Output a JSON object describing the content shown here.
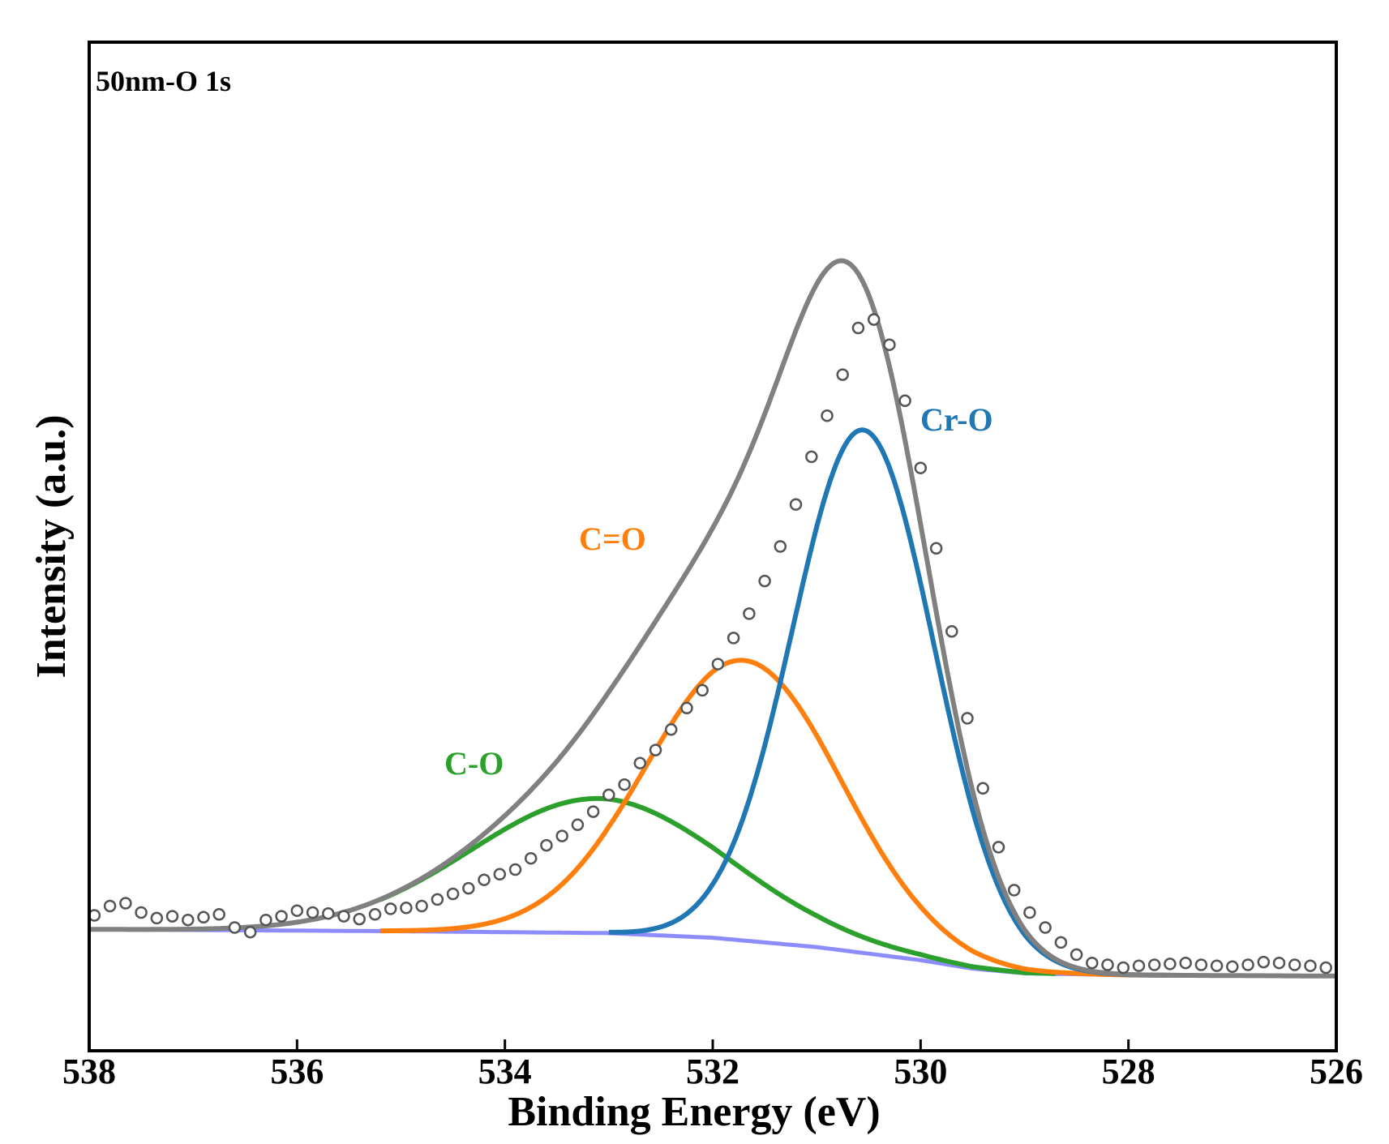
{
  "chart_data": {
    "type": "line",
    "title": "50nm-O 1s",
    "xlabel": "Binding Energy (eV)",
    "ylabel": "Intensity (a.u.)",
    "xlim": [
      538,
      526
    ],
    "x_reversed": true,
    "x_ticks": [
      538,
      536,
      534,
      532,
      530,
      528,
      526
    ],
    "x_tick_labels": [
      "538",
      "536",
      "534",
      "532",
      "530",
      "528",
      "526"
    ],
    "ylim": [
      -0.08,
      1.0
    ],
    "y_ticks_shown": false,
    "grid": false,
    "legend": "none",
    "colors": {
      "Cr-O": "#1f77b4",
      "C=O": "#ff7f0e",
      "C-O": "#2ca02c",
      "background": "#8c8cff",
      "envelope": "#808080",
      "raw": "#555555"
    },
    "background": {
      "x": [
        538,
        535,
        533,
        532,
        531,
        530,
        529.5,
        529,
        528,
        526
      ],
      "values": [
        0.05,
        0.048,
        0.046,
        0.041,
        0.031,
        0.017,
        0.008,
        0.003,
        0.001,
        0.0
      ]
    },
    "components": [
      {
        "name": "Cr-O",
        "label": "Cr-O",
        "center": 530.55,
        "height": 0.56,
        "fwhm": 1.6,
        "x_min": 533.0,
        "x_max": 527.6
      },
      {
        "name": "C=O",
        "label": "C=O",
        "center": 531.7,
        "height": 0.3,
        "fwhm": 2.2,
        "x_min": 535.2,
        "x_max": 527.4
      },
      {
        "name": "C-O",
        "label": "C-O",
        "center": 533.1,
        "height": 0.144,
        "fwhm": 2.9,
        "x_min": 535.2,
        "x_max": 528.7
      }
    ],
    "raw_points": {
      "x": [
        537.95,
        537.8,
        537.65,
        537.5,
        537.35,
        537.2,
        537.05,
        536.9,
        536.75,
        536.6,
        536.45,
        536.3,
        536.15,
        536.0,
        535.85,
        535.7,
        535.55,
        535.4,
        535.25,
        535.1,
        534.95,
        534.8,
        534.65,
        534.5,
        534.35,
        534.2,
        534.05,
        533.9,
        533.75,
        533.6,
        533.45,
        533.3,
        533.15,
        533.0,
        532.85,
        532.7,
        532.55,
        532.4,
        532.25,
        532.1,
        531.95,
        531.8,
        531.65,
        531.5,
        531.35,
        531.2,
        531.05,
        530.9,
        530.75,
        530.6,
        530.45,
        530.3,
        530.15,
        530.0,
        529.85,
        529.7,
        529.55,
        529.4,
        529.25,
        529.1,
        528.95,
        528.8,
        528.65,
        528.5,
        528.35,
        528.2,
        528.05,
        527.9,
        527.75,
        527.6,
        527.45,
        527.3,
        527.15,
        527.0,
        526.85,
        526.7,
        526.55,
        526.4,
        526.25,
        526.1
      ],
      "values": [
        0.065,
        0.075,
        0.078,
        0.068,
        0.062,
        0.064,
        0.06,
        0.063,
        0.066,
        0.052,
        0.047,
        0.06,
        0.064,
        0.07,
        0.068,
        0.067,
        0.064,
        0.061,
        0.066,
        0.072,
        0.073,
        0.075,
        0.082,
        0.088,
        0.094,
        0.103,
        0.109,
        0.114,
        0.126,
        0.14,
        0.15,
        0.162,
        0.176,
        0.194,
        0.205,
        0.228,
        0.242,
        0.264,
        0.287,
        0.306,
        0.334,
        0.362,
        0.388,
        0.423,
        0.46,
        0.505,
        0.556,
        0.6,
        0.644,
        0.694,
        0.703,
        0.676,
        0.616,
        0.544,
        0.458,
        0.369,
        0.276,
        0.201,
        0.138,
        0.092,
        0.068,
        0.052,
        0.036,
        0.023,
        0.014,
        0.012,
        0.009,
        0.011,
        0.012,
        0.013,
        0.014,
        0.012,
        0.011,
        0.01,
        0.012,
        0.015,
        0.014,
        0.012,
        0.011,
        0.009
      ]
    },
    "annotations": [
      "Cr-O",
      "C=O",
      "C-O"
    ]
  }
}
